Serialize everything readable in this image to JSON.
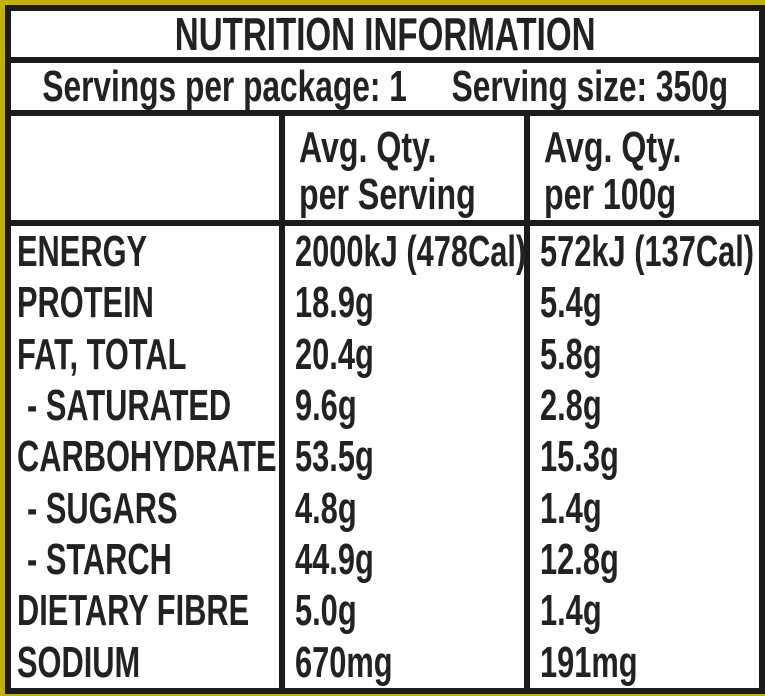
{
  "colors": {
    "package_background": "#c0b200",
    "border": "#1d1b19",
    "text": "#242122",
    "panel": "#ffffff"
  },
  "label": {
    "title": "NUTRITION INFORMATION",
    "servings_per_package": "Servings per package: 1",
    "serving_size": "Serving size: 350g"
  },
  "columns": {
    "per_serving": {
      "line1": "Avg. Qty.",
      "line2": "per Serving"
    },
    "per_100g": {
      "line1": "Avg. Qty.",
      "line2": "per 100g"
    }
  },
  "rows": [
    {
      "name": "ENERGY",
      "per_serving": "2000kJ (478Cal)",
      "per_100g": "572kJ (137Cal)"
    },
    {
      "name": "PROTEIN",
      "per_serving": "18.9g",
      "per_100g": "5.4g"
    },
    {
      "name": "FAT, TOTAL",
      "per_serving": "20.4g",
      "per_100g": "5.8g"
    },
    {
      "name": "- SATURATED",
      "per_serving": "9.6g",
      "per_100g": "2.8g"
    },
    {
      "name": "CARBOHYDRATE",
      "per_serving": "53.5g",
      "per_100g": "15.3g"
    },
    {
      "name": "- SUGARS",
      "per_serving": "4.8g",
      "per_100g": "1.4g"
    },
    {
      "name": "- STARCH",
      "per_serving": "44.9g",
      "per_100g": "12.8g"
    },
    {
      "name": "DIETARY FIBRE",
      "per_serving": "5.0g",
      "per_100g": "1.4g"
    },
    {
      "name": "SODIUM",
      "per_serving": "670mg",
      "per_100g": "191mg"
    }
  ]
}
